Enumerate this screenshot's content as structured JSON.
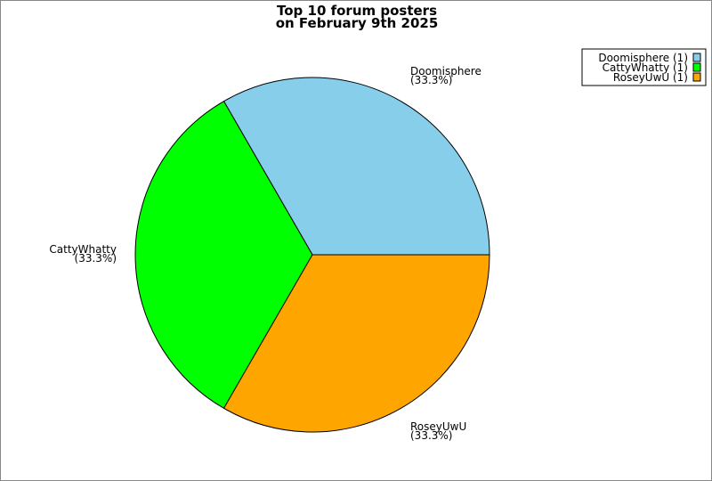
{
  "chart_data": {
    "type": "pie",
    "title": [
      "Top 10 forum posters",
      "on February 9th 2025"
    ],
    "slices": [
      {
        "label": "Doomisphere",
        "value": 1,
        "percent": "(33.3%)",
        "legend": "Doomisphere (1)",
        "color": "#87ceeb"
      },
      {
        "label": "CattyWhatty",
        "value": 1,
        "percent": "(33.3%)",
        "legend": "CattyWhatty (1)",
        "color": "#00ff00"
      },
      {
        "label": "RoseyUwU",
        "value": 1,
        "percent": "(33.3%)",
        "legend": "RoseyUwU (1)",
        "color": "#ffa500"
      }
    ],
    "legend_position": "top-right"
  }
}
